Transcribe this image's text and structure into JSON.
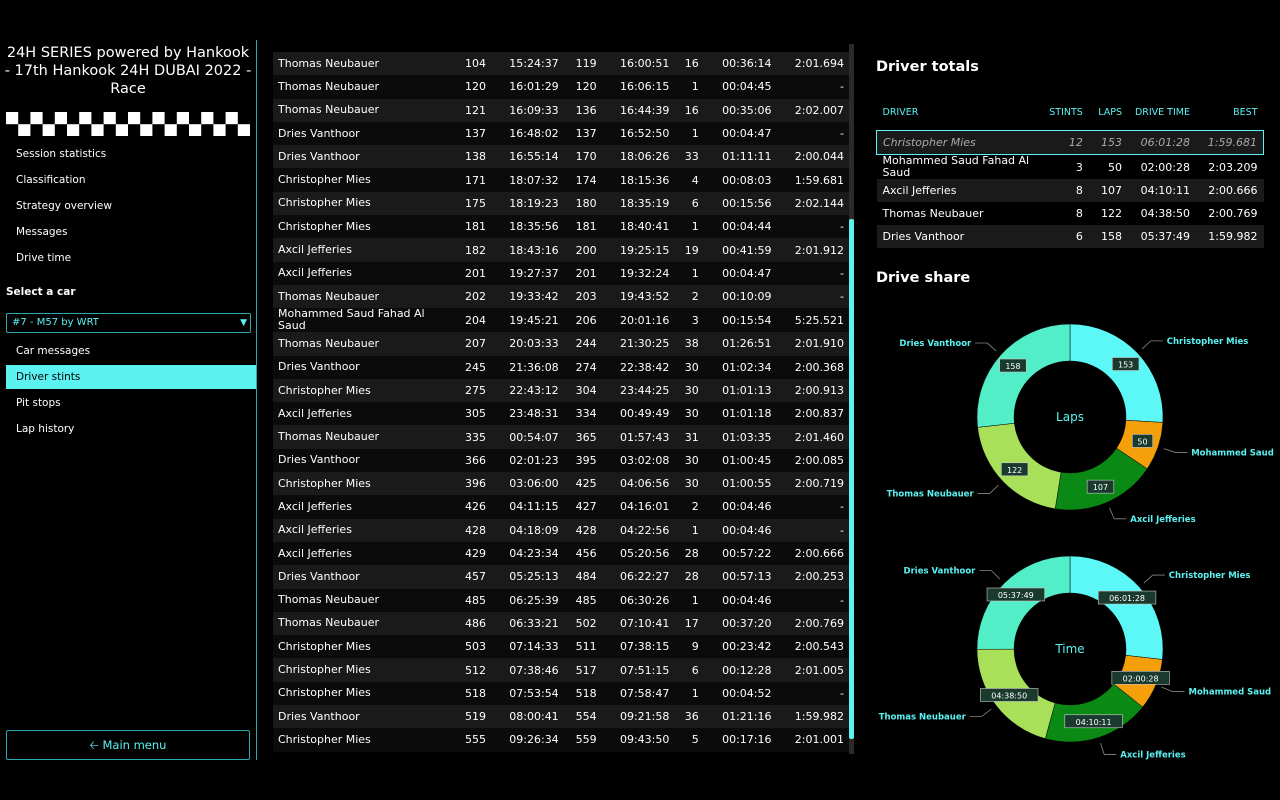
{
  "sidebar": {
    "title": "24H SERIES powered by Hankook - 17th Hankook 24H DUBAI 2022 - Race",
    "nav": [
      {
        "label": "Session statistics",
        "name": "nav-session-statistics"
      },
      {
        "label": "Classification",
        "name": "nav-classification"
      },
      {
        "label": "Strategy overview",
        "name": "nav-strategy-overview"
      },
      {
        "label": "Messages",
        "name": "nav-messages"
      },
      {
        "label": "Drive time",
        "name": "nav-drive-time"
      }
    ],
    "select_car_label": "Select a car",
    "selected_car": "#7 - M57 by WRT",
    "car_nav": [
      {
        "label": "Car messages",
        "name": "nav-car-messages",
        "active": false
      },
      {
        "label": "Driver stints",
        "name": "nav-driver-stints",
        "active": true
      },
      {
        "label": "Pit stops",
        "name": "nav-pit-stops",
        "active": false
      },
      {
        "label": "Lap history",
        "name": "nav-lap-history",
        "active": false
      }
    ],
    "main_menu": "Main menu"
  },
  "stints": [
    [
      "Thomas Neubauer",
      "104",
      "15:24:37",
      "119",
      "16:00:51",
      "16",
      "00:36:14",
      "2:01.694"
    ],
    [
      "Thomas Neubauer",
      "120",
      "16:01:29",
      "120",
      "16:06:15",
      "1",
      "00:04:45",
      "-"
    ],
    [
      "Thomas Neubauer",
      "121",
      "16:09:33",
      "136",
      "16:44:39",
      "16",
      "00:35:06",
      "2:02.007"
    ],
    [
      "Dries Vanthoor",
      "137",
      "16:48:02",
      "137",
      "16:52:50",
      "1",
      "00:04:47",
      "-"
    ],
    [
      "Dries Vanthoor",
      "138",
      "16:55:14",
      "170",
      "18:06:26",
      "33",
      "01:11:11",
      "2:00.044"
    ],
    [
      "Christopher Mies",
      "171",
      "18:07:32",
      "174",
      "18:15:36",
      "4",
      "00:08:03",
      "1:59.681"
    ],
    [
      "Christopher Mies",
      "175",
      "18:19:23",
      "180",
      "18:35:19",
      "6",
      "00:15:56",
      "2:02.144"
    ],
    [
      "Christopher Mies",
      "181",
      "18:35:56",
      "181",
      "18:40:41",
      "1",
      "00:04:44",
      "-"
    ],
    [
      "Axcil Jefferies",
      "182",
      "18:43:16",
      "200",
      "19:25:15",
      "19",
      "00:41:59",
      "2:01.912"
    ],
    [
      "Axcil Jefferies",
      "201",
      "19:27:37",
      "201",
      "19:32:24",
      "1",
      "00:04:47",
      "-"
    ],
    [
      "Thomas Neubauer",
      "202",
      "19:33:42",
      "203",
      "19:43:52",
      "2",
      "00:10:09",
      "-"
    ],
    [
      "Mohammed Saud Fahad Al Saud",
      "204",
      "19:45:21",
      "206",
      "20:01:16",
      "3",
      "00:15:54",
      "5:25.521"
    ],
    [
      "Thomas Neubauer",
      "207",
      "20:03:33",
      "244",
      "21:30:25",
      "38",
      "01:26:51",
      "2:01.910"
    ],
    [
      "Dries Vanthoor",
      "245",
      "21:36:08",
      "274",
      "22:38:42",
      "30",
      "01:02:34",
      "2:00.368"
    ],
    [
      "Christopher Mies",
      "275",
      "22:43:12",
      "304",
      "23:44:25",
      "30",
      "01:01:13",
      "2:00.913"
    ],
    [
      "Axcil Jefferies",
      "305",
      "23:48:31",
      "334",
      "00:49:49",
      "30",
      "01:01:18",
      "2:00.837"
    ],
    [
      "Thomas Neubauer",
      "335",
      "00:54:07",
      "365",
      "01:57:43",
      "31",
      "01:03:35",
      "2:01.460"
    ],
    [
      "Dries Vanthoor",
      "366",
      "02:01:23",
      "395",
      "03:02:08",
      "30",
      "01:00:45",
      "2:00.085"
    ],
    [
      "Christopher Mies",
      "396",
      "03:06:00",
      "425",
      "04:06:56",
      "30",
      "01:00:55",
      "2:00.719"
    ],
    [
      "Axcil Jefferies",
      "426",
      "04:11:15",
      "427",
      "04:16:01",
      "2",
      "00:04:46",
      "-"
    ],
    [
      "Axcil Jefferies",
      "428",
      "04:18:09",
      "428",
      "04:22:56",
      "1",
      "00:04:46",
      "-"
    ],
    [
      "Axcil Jefferies",
      "429",
      "04:23:34",
      "456",
      "05:20:56",
      "28",
      "00:57:22",
      "2:00.666"
    ],
    [
      "Dries Vanthoor",
      "457",
      "05:25:13",
      "484",
      "06:22:27",
      "28",
      "00:57:13",
      "2:00.253"
    ],
    [
      "Thomas Neubauer",
      "485",
      "06:25:39",
      "485",
      "06:30:26",
      "1",
      "00:04:46",
      "-"
    ],
    [
      "Thomas Neubauer",
      "486",
      "06:33:21",
      "502",
      "07:10:41",
      "17",
      "00:37:20",
      "2:00.769"
    ],
    [
      "Christopher Mies",
      "503",
      "07:14:33",
      "511",
      "07:38:15",
      "9",
      "00:23:42",
      "2:00.543"
    ],
    [
      "Christopher Mies",
      "512",
      "07:38:46",
      "517",
      "07:51:15",
      "6",
      "00:12:28",
      "2:01.005"
    ],
    [
      "Christopher Mies",
      "518",
      "07:53:54",
      "518",
      "07:58:47",
      "1",
      "00:04:52",
      "-"
    ],
    [
      "Dries Vanthoor",
      "519",
      "08:00:41",
      "554",
      "09:21:58",
      "36",
      "01:21:16",
      "1:59.982"
    ],
    [
      "Christopher Mies",
      "555",
      "09:26:34",
      "559",
      "09:43:50",
      "5",
      "00:17:16",
      "2:01.001"
    ]
  ],
  "totals": {
    "title": "Driver totals",
    "columns": [
      "DRIVER",
      "STINTS",
      "LAPS",
      "DRIVE TIME",
      "BEST"
    ],
    "rows": [
      {
        "driver": "Christopher Mies",
        "stints": "12",
        "laps": "153",
        "drive_time": "06:01:28",
        "best": "1:59.681",
        "highlight": true
      },
      {
        "driver": "Mohammed Saud Fahad Al Saud",
        "stints": "3",
        "laps": "50",
        "drive_time": "02:00:28",
        "best": "2:03.209",
        "highlight": false
      },
      {
        "driver": "Axcil Jefferies",
        "stints": "8",
        "laps": "107",
        "drive_time": "04:10:11",
        "best": "2:00.666",
        "highlight": false
      },
      {
        "driver": "Thomas Neubauer",
        "stints": "8",
        "laps": "122",
        "drive_time": "04:38:50",
        "best": "2:00.769",
        "highlight": false
      },
      {
        "driver": "Dries Vanthoor",
        "stints": "6",
        "laps": "158",
        "drive_time": "05:37:49",
        "best": "1:59.982",
        "highlight": false
      }
    ]
  },
  "drive_share_title": "Drive share",
  "colors": {
    "accent": "#5cf2f2",
    "Christopher Mies": "#5cf8f8",
    "Mohammed Saud": "#f5a00a",
    "Axcil Jefferies": "#0a8a14",
    "Thomas Neubauer": "#a8e05a",
    "Dries Vanthoor": "#52eec8"
  },
  "chart_data": [
    {
      "type": "pie",
      "title": "Laps",
      "categories": [
        "Christopher Mies",
        "Mohammed Saud",
        "Axcil Jefferies",
        "Thomas Neubauer",
        "Dries Vanthoor"
      ],
      "values": [
        153,
        50,
        107,
        122,
        158
      ],
      "labels": [
        "153",
        "50",
        "107",
        "122",
        "158"
      ]
    },
    {
      "type": "pie",
      "title": "Time",
      "categories": [
        "Christopher Mies",
        "Mohammed Saud",
        "Axcil Jefferies",
        "Thomas Neubauer",
        "Dries Vanthoor"
      ],
      "values": [
        361.47,
        120.47,
        250.18,
        278.83,
        337.82
      ],
      "labels": [
        "06:01:28",
        "02:00:28",
        "04:10:11",
        "04:38:50",
        "05:37:49"
      ]
    }
  ]
}
